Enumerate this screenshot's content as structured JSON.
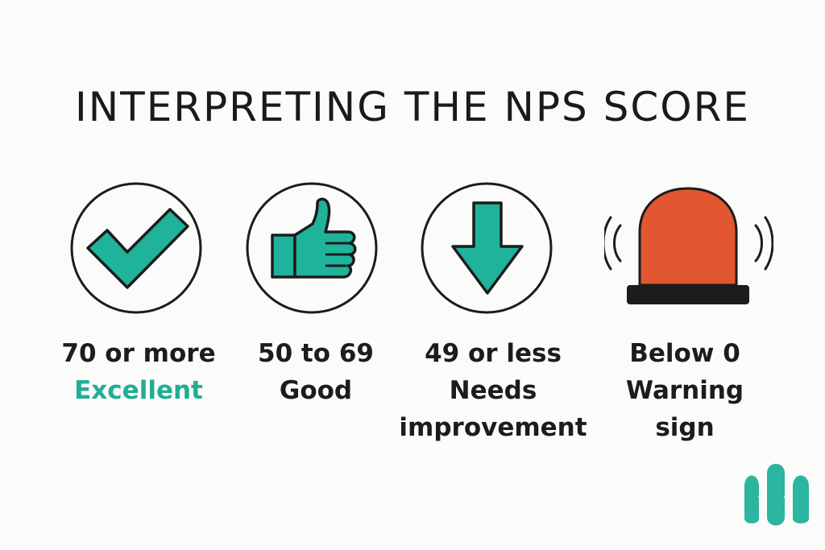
{
  "title": "INTERPRETING THE NPS SCORE",
  "colors": {
    "teal": "#1fb39b",
    "red": "#e25632",
    "ink": "#1c1c1c"
  },
  "categories": [
    {
      "icon": "checkmark-icon",
      "range": "70 or more",
      "label": "Excellent",
      "label_color": "#1fae96"
    },
    {
      "icon": "thumbs-up-icon",
      "range": "50 to 69",
      "label": "Good"
    },
    {
      "icon": "down-arrow-icon",
      "range": "49 or less",
      "label_line1": "Needs",
      "label_line2": "improvement"
    },
    {
      "icon": "alarm-siren-icon",
      "range": "Below 0",
      "label_line1": "Warning",
      "label_line2": "sign"
    }
  ],
  "logo": {
    "icon": "brand-logo-icon"
  }
}
